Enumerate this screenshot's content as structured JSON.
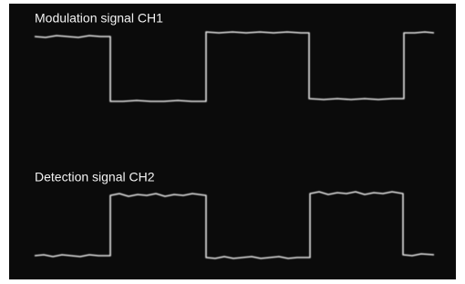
{
  "screen": {
    "ch1_label": "Modulation signal CH1",
    "ch2_label": "Detection signal CH2"
  }
}
